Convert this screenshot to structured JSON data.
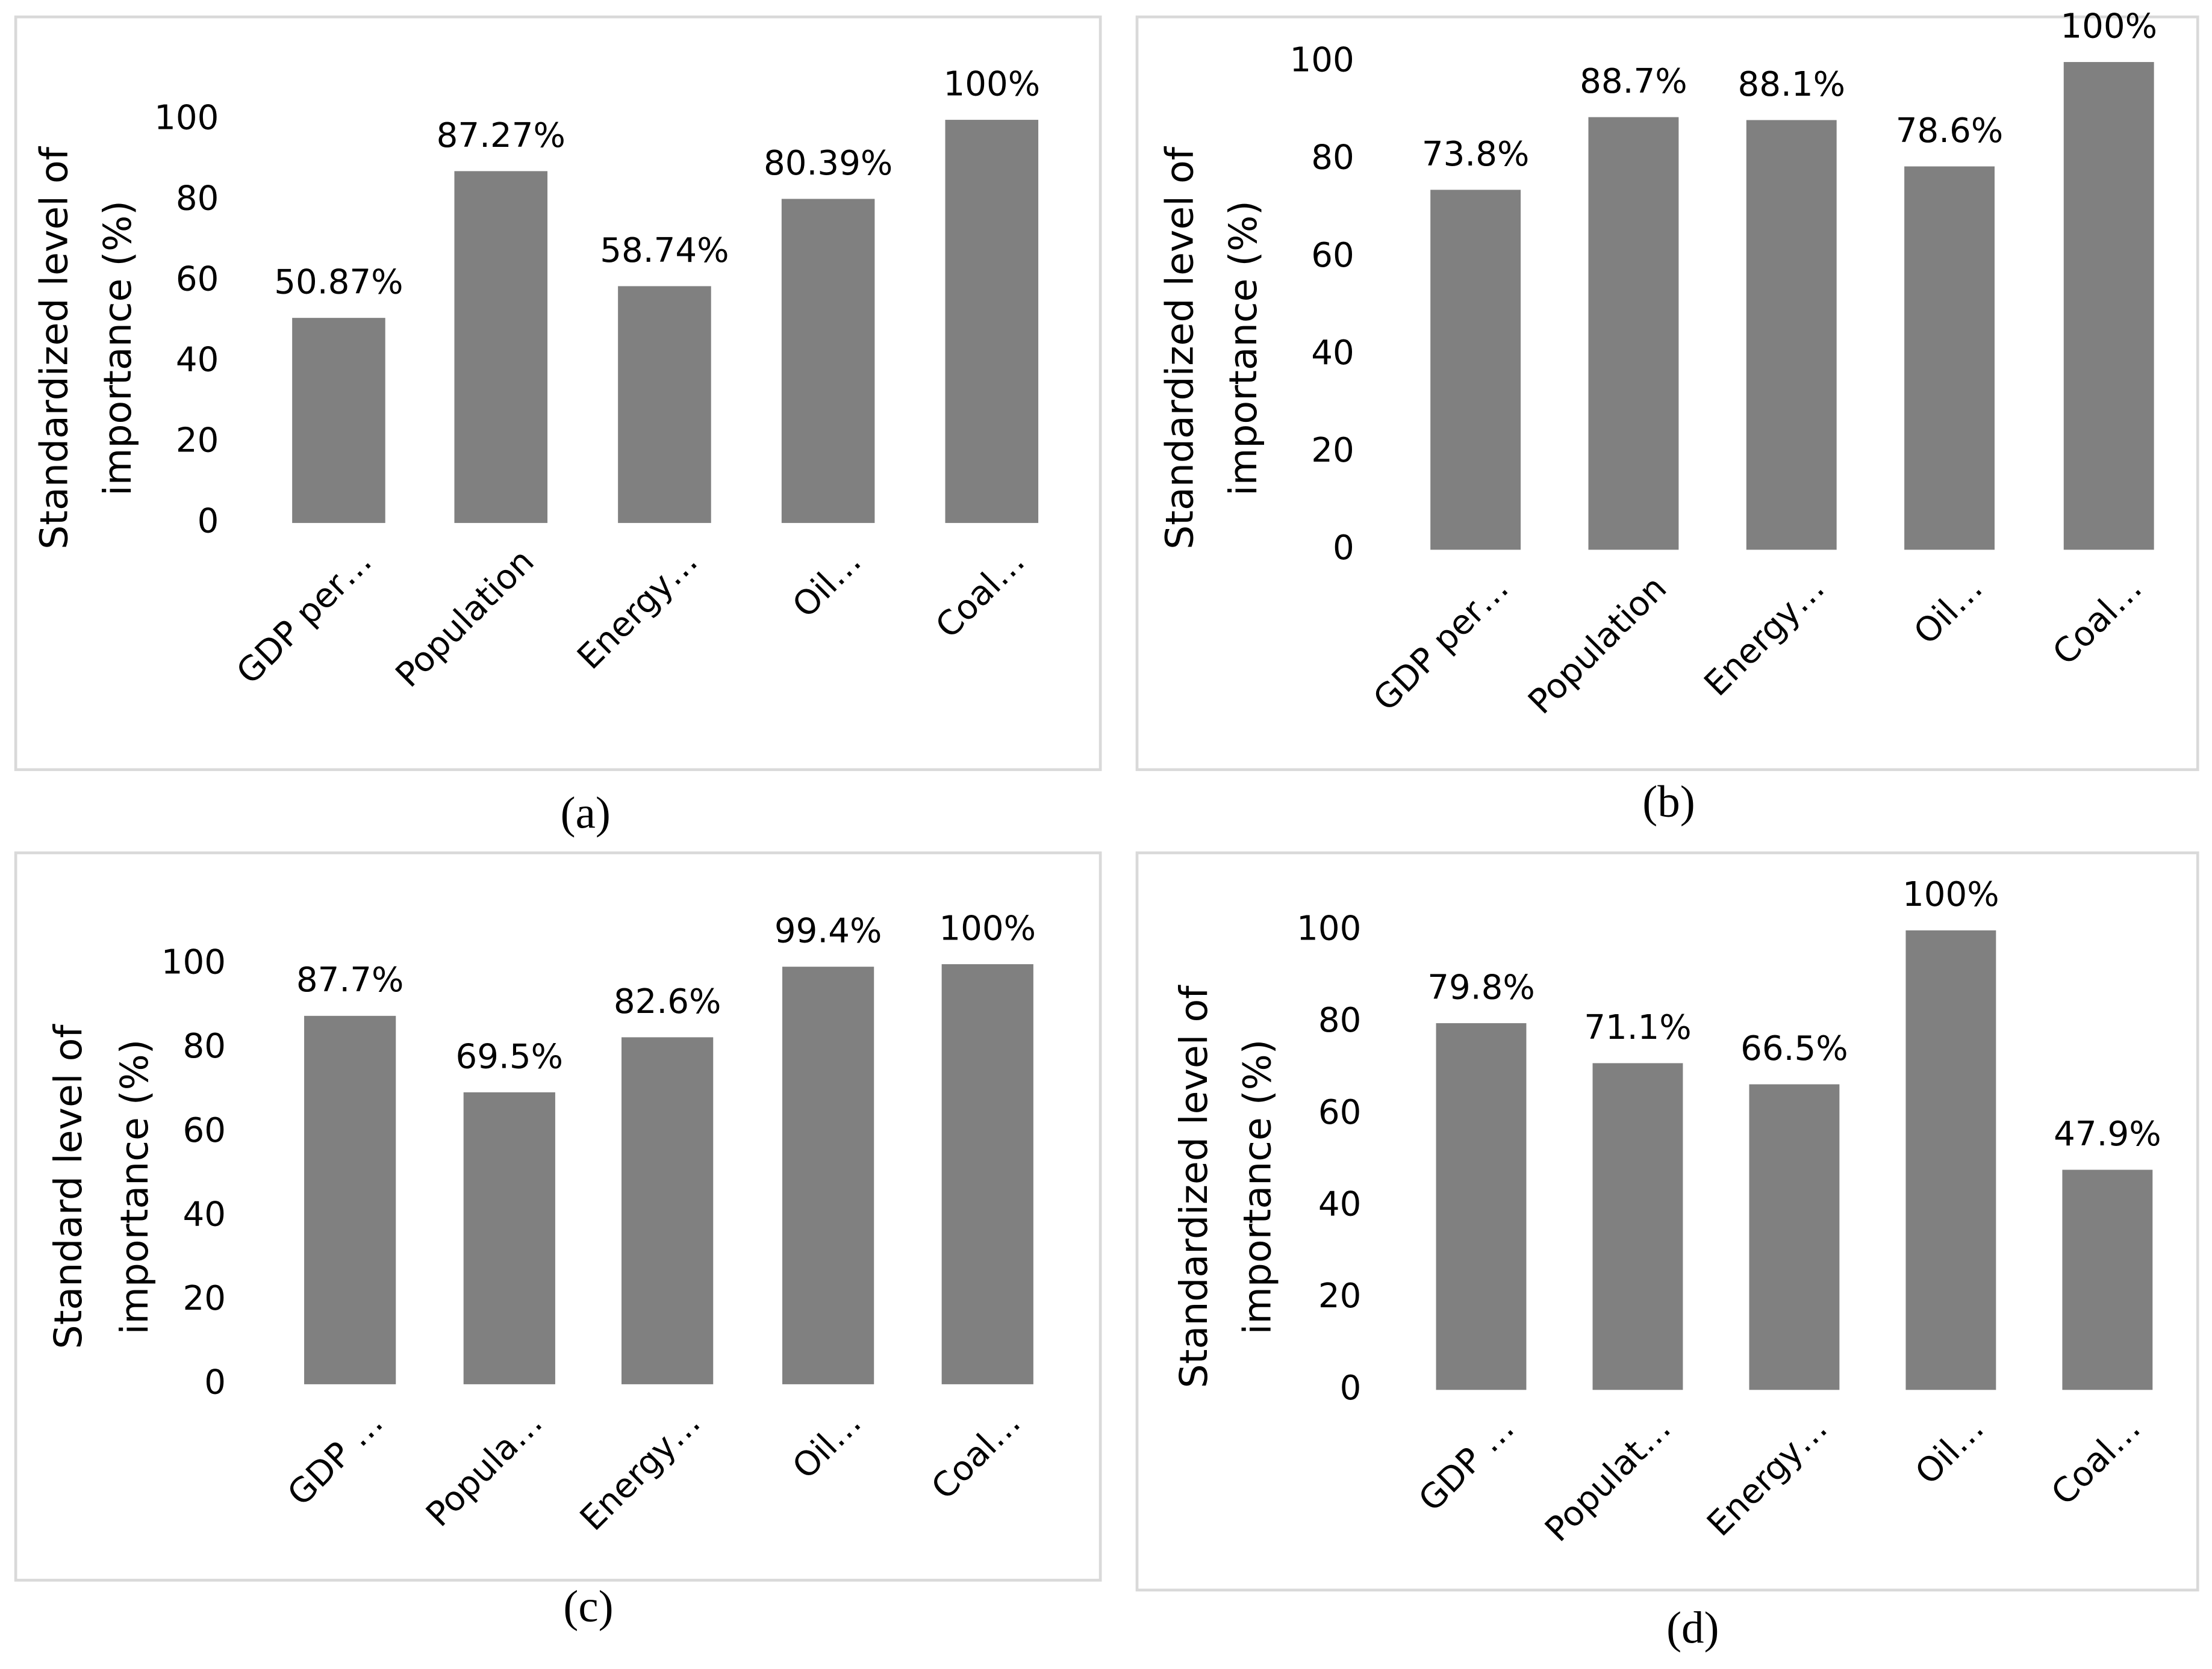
{
  "chart_data": [
    {
      "type": "bar",
      "caption": "(a)",
      "y_label": [
        "Standardized level of",
        "importance (%)"
      ],
      "categories": [
        "GDP per…",
        "Population",
        "Energy…",
        "Oil…",
        "Coal…"
      ],
      "values": [
        50.87,
        87.27,
        58.74,
        80.39,
        100
      ],
      "value_labels": [
        "50.87%",
        "87.27%",
        "58.74%",
        "80.39%",
        "100%"
      ],
      "color": "#808080",
      "ylim": [
        0,
        100
      ],
      "yticks": [
        0,
        20,
        40,
        60,
        80,
        100
      ]
    },
    {
      "type": "bar",
      "caption": "(b)",
      "y_label": [
        "Standardized level of",
        "importance (%)"
      ],
      "categories": [
        "GDP per…",
        "Population",
        "Energy…",
        "Oil…",
        "Coal…"
      ],
      "values": [
        73.8,
        88.7,
        88.1,
        78.6,
        100
      ],
      "value_labels": [
        "73.8%",
        "88.7%",
        "88.1%",
        "78.6%",
        "100%"
      ],
      "color": "#808080",
      "ylim": [
        0,
        100
      ],
      "yticks": [
        0,
        20,
        40,
        60,
        80,
        100
      ]
    },
    {
      "type": "bar",
      "caption": "(c)",
      "y_label": [
        "Standard level of",
        "importance (%)"
      ],
      "categories": [
        "GDP …",
        "Popula…",
        "Energy…",
        "Oil…",
        "Coal…"
      ],
      "values": [
        87.7,
        69.5,
        82.6,
        99.4,
        100
      ],
      "value_labels": [
        "87.7%",
        "69.5%",
        "82.6%",
        "99.4%",
        "100%"
      ],
      "color": "#808080",
      "ylim": [
        0,
        100
      ],
      "yticks": [
        0,
        20,
        40,
        60,
        80,
        100
      ]
    },
    {
      "type": "bar",
      "caption": "(d)",
      "y_label": [
        "Standardized level of",
        "importance (%)"
      ],
      "categories": [
        "GDP …",
        "Populat…",
        "Energy…",
        "Oil…",
        "Coal…"
      ],
      "values": [
        79.8,
        71.1,
        66.5,
        100,
        47.9
      ],
      "value_labels": [
        "79.8%",
        "71.1%",
        "66.5%",
        "100%",
        "47.9%"
      ],
      "color": "#808080",
      "ylim": [
        0,
        100
      ],
      "yticks": [
        0,
        20,
        40,
        60,
        80,
        100
      ]
    }
  ]
}
